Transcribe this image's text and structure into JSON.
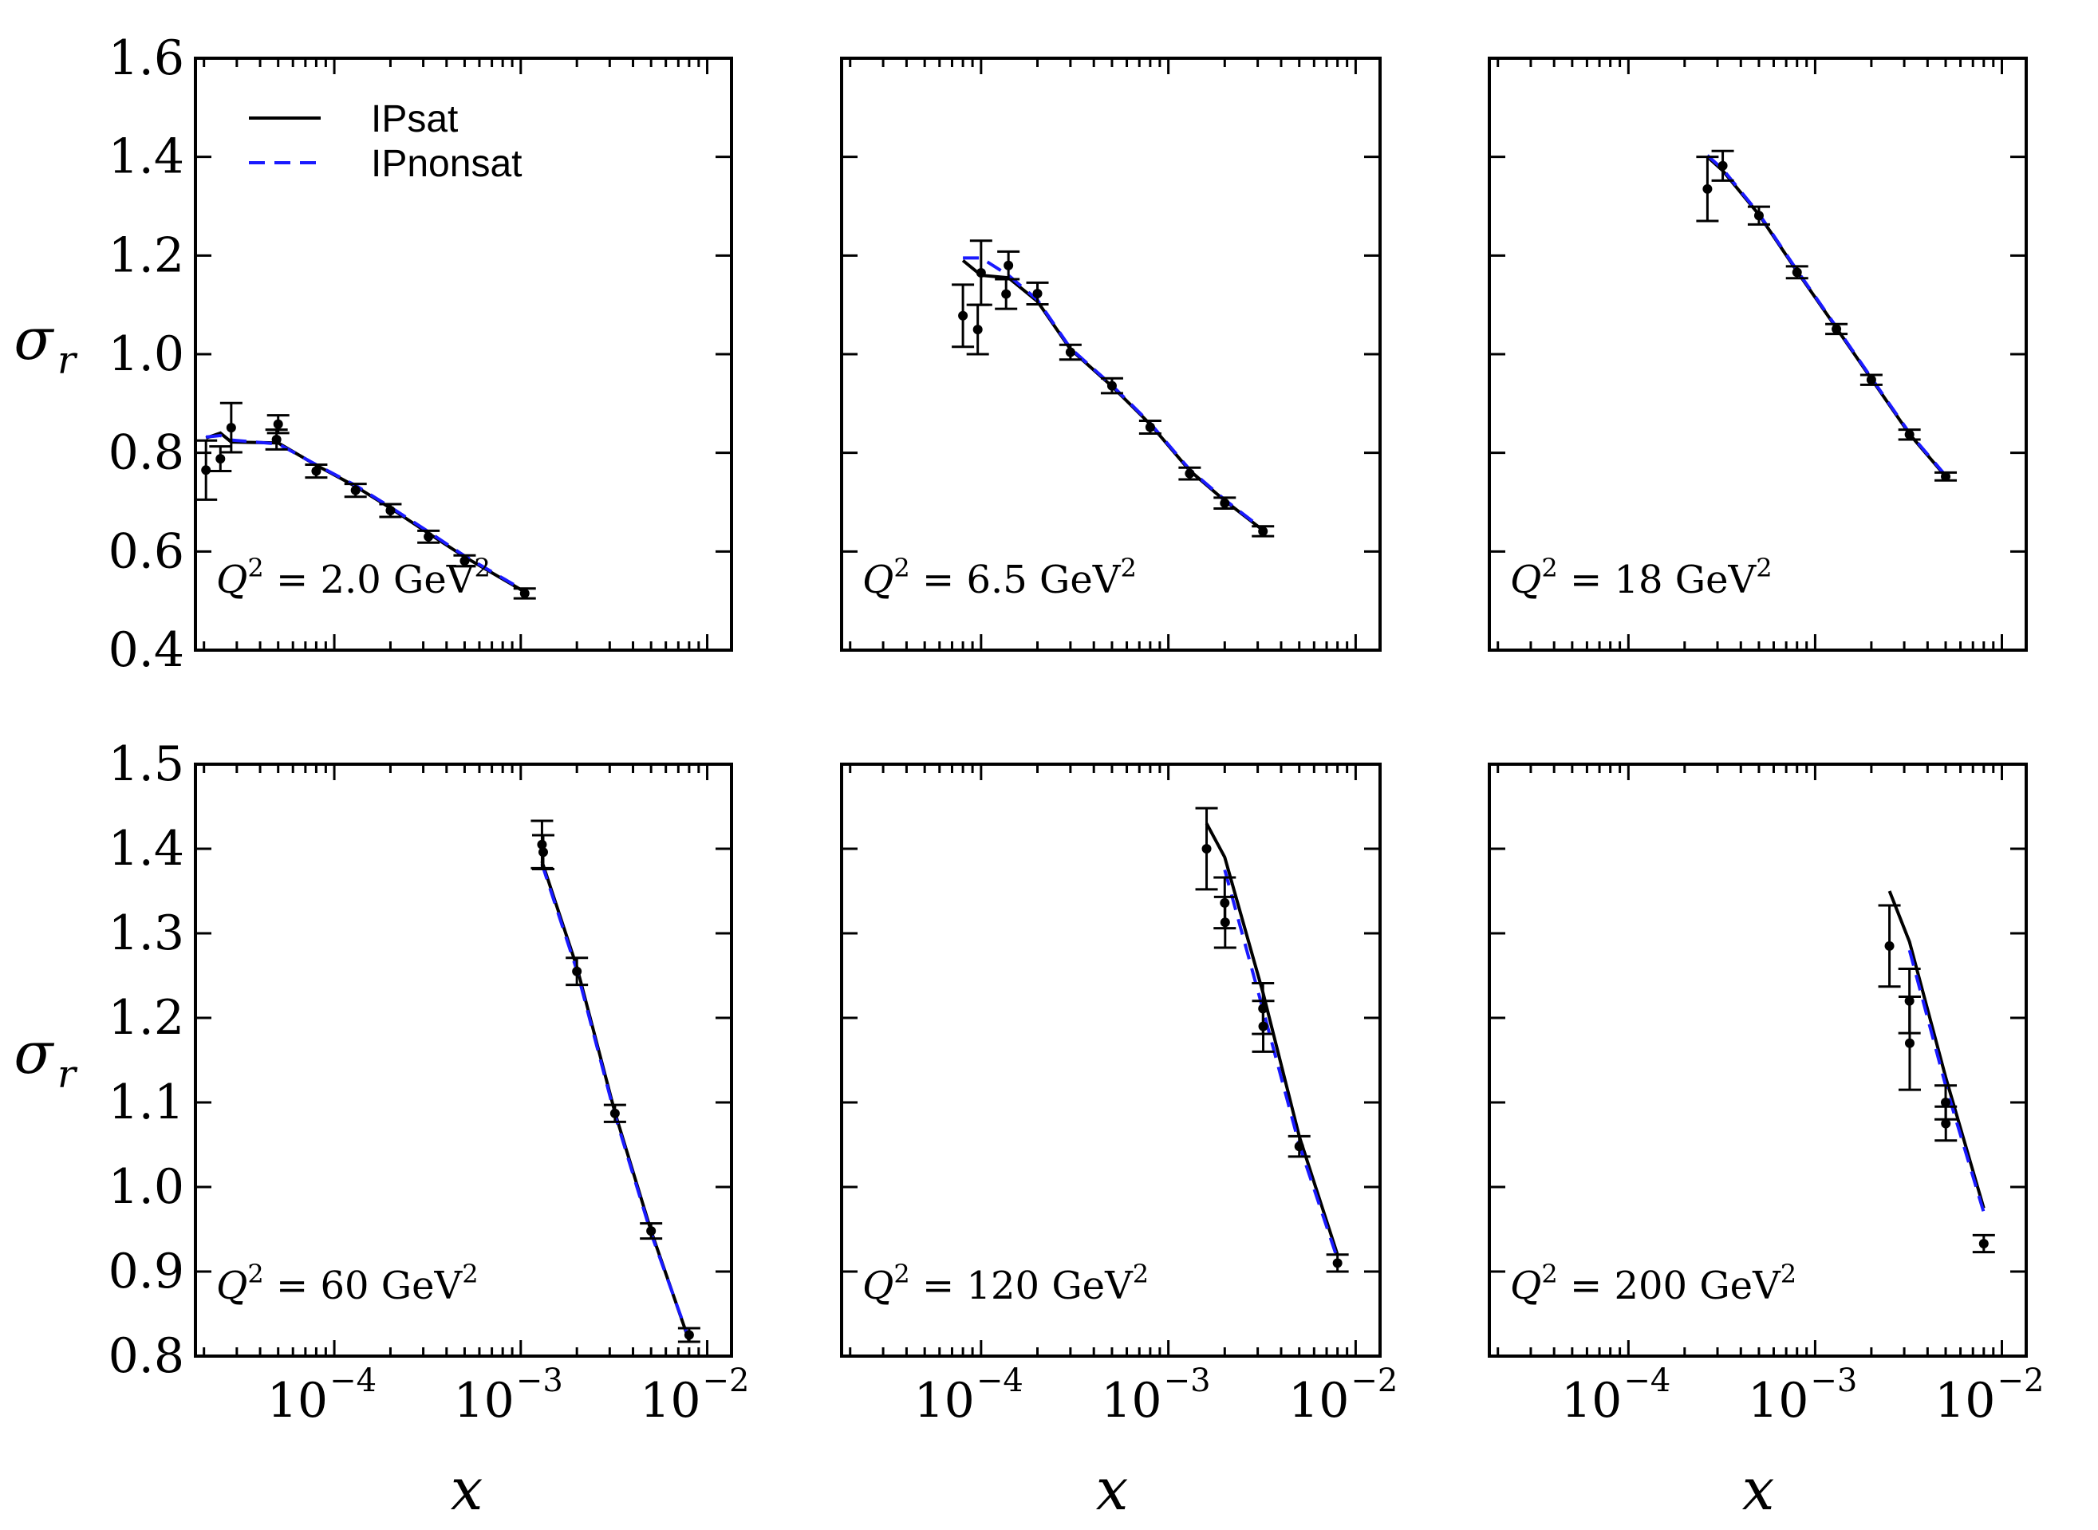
{
  "colors": {
    "ipsat": "#000000",
    "ipnonsat": "#1a1aff",
    "points": "#000000"
  },
  "legend": {
    "ipsat": "IPsat",
    "ipnonsat": "IPnonsat"
  },
  "axes": {
    "ylabel": "σ",
    "ylabel_sub": "r",
    "xlabel": "x"
  },
  "x_tick_labels": [
    {
      "base": "10",
      "exp": "−4"
    },
    {
      "base": "10",
      "exp": "−3"
    },
    {
      "base": "10",
      "exp": "−2"
    }
  ],
  "y_tick_labels_top": [
    "0.4",
    "0.6",
    "0.8",
    "1.0",
    "1.2",
    "1.4",
    "1.6"
  ],
  "y_tick_labels_bottom": [
    "0.8",
    "0.9",
    "1.0",
    "1.1",
    "1.2",
    "1.3",
    "1.4",
    "1.5"
  ],
  "chart_data": [
    {
      "type": "line",
      "title": "",
      "annotation": {
        "var": "Q",
        "sup": "2",
        "eq": " = 2.0 GeV",
        "unit_sup": "2"
      },
      "xscale": "log",
      "xlim": [
        1.8e-05,
        0.0135
      ],
      "ylim": [
        0.4,
        1.6
      ],
      "points": [
        {
          "x": 2.05e-05,
          "y": 0.765,
          "err": 0.06
        },
        {
          "x": 2.45e-05,
          "y": 0.788,
          "err": 0.025
        },
        {
          "x": 2.8e-05,
          "y": 0.851,
          "err": 0.05
        },
        {
          "x": 4.9e-05,
          "y": 0.827,
          "err": 0.02
        },
        {
          "x": 5e-05,
          "y": 0.858,
          "err": 0.018
        },
        {
          "x": 8e-05,
          "y": 0.763,
          "err": 0.013
        },
        {
          "x": 0.00013,
          "y": 0.724,
          "err": 0.013
        },
        {
          "x": 0.0002,
          "y": 0.683,
          "err": 0.013
        },
        {
          "x": 0.00032,
          "y": 0.63,
          "err": 0.012
        },
        {
          "x": 0.0005,
          "y": 0.581,
          "err": 0.011
        },
        {
          "x": 0.00105,
          "y": 0.515,
          "err": 0.01
        }
      ],
      "series": [
        {
          "name": "IPsat",
          "x": [
            2.05e-05,
            2.45e-05,
            2.8e-05,
            5e-05,
            8e-05,
            0.00013,
            0.0002,
            0.00032,
            0.0005,
            0.00105
          ],
          "y": [
            0.83,
            0.84,
            0.822,
            0.82,
            0.775,
            0.732,
            0.688,
            0.637,
            0.589,
            0.518
          ]
        },
        {
          "name": "IPnonsat",
          "x": [
            2.05e-05,
            2.45e-05,
            2.8e-05,
            5e-05,
            8e-05,
            0.00013,
            0.0002,
            0.00032,
            0.0005,
            0.00105
          ],
          "y": [
            0.832,
            0.835,
            0.826,
            0.818,
            0.776,
            0.734,
            0.69,
            0.64,
            0.591,
            0.52
          ]
        }
      ]
    },
    {
      "type": "line",
      "title": "",
      "annotation": {
        "var": "Q",
        "sup": "2",
        "eq": " = 6.5 GeV",
        "unit_sup": "2"
      },
      "xscale": "log",
      "xlim": [
        1.8e-05,
        0.0135
      ],
      "ylim": [
        0.4,
        1.6
      ],
      "points": [
        {
          "x": 8e-05,
          "y": 1.078,
          "err": 0.063
        },
        {
          "x": 9.6e-05,
          "y": 1.05,
          "err": 0.05
        },
        {
          "x": 0.0001,
          "y": 1.165,
          "err": 0.065
        },
        {
          "x": 0.000136,
          "y": 1.122,
          "err": 0.03
        },
        {
          "x": 0.00014,
          "y": 1.18,
          "err": 0.028
        },
        {
          "x": 0.0002,
          "y": 1.123,
          "err": 0.022
        },
        {
          "x": 0.0003,
          "y": 1.004,
          "err": 0.015
        },
        {
          "x": 0.0005,
          "y": 0.936,
          "err": 0.015
        },
        {
          "x": 0.0008,
          "y": 0.852,
          "err": 0.013
        },
        {
          "x": 0.0013,
          "y": 0.758,
          "err": 0.012
        },
        {
          "x": 0.002,
          "y": 0.698,
          "err": 0.011
        },
        {
          "x": 0.0032,
          "y": 0.641,
          "err": 0.01
        }
      ],
      "series": [
        {
          "name": "IPsat",
          "x": [
            8e-05,
            0.0001,
            0.00014,
            0.0002,
            0.0003,
            0.0005,
            0.0008,
            0.0013,
            0.002,
            0.0032
          ],
          "y": [
            1.19,
            1.16,
            1.155,
            1.107,
            1.01,
            0.935,
            0.858,
            0.764,
            0.703,
            0.643
          ]
        },
        {
          "name": "IPnonsat",
          "x": [
            8e-05,
            0.0001,
            0.00014,
            0.0002,
            0.0003,
            0.0005,
            0.0008,
            0.0013,
            0.002,
            0.0032
          ],
          "y": [
            1.195,
            1.195,
            1.16,
            1.11,
            1.012,
            0.937,
            0.86,
            0.766,
            0.705,
            0.645
          ]
        }
      ]
    },
    {
      "type": "line",
      "title": "",
      "annotation": {
        "var": "Q",
        "sup": "2",
        "eq": " = 18 GeV",
        "unit_sup": "2"
      },
      "xscale": "log",
      "xlim": [
        1.8e-05,
        0.0135
      ],
      "ylim": [
        0.4,
        1.6
      ],
      "points": [
        {
          "x": 0.000265,
          "y": 1.335,
          "err": 0.065
        },
        {
          "x": 0.00032,
          "y": 1.382,
          "err": 0.03
        },
        {
          "x": 0.0005,
          "y": 1.281,
          "err": 0.018
        },
        {
          "x": 0.0008,
          "y": 1.166,
          "err": 0.012
        },
        {
          "x": 0.0013,
          "y": 1.051,
          "err": 0.01
        },
        {
          "x": 0.002,
          "y": 0.948,
          "err": 0.01
        },
        {
          "x": 0.0032,
          "y": 0.837,
          "err": 0.01
        },
        {
          "x": 0.005,
          "y": 0.752,
          "err": 0.008
        }
      ],
      "series": [
        {
          "name": "IPsat",
          "x": [
            0.000265,
            0.00032,
            0.0005,
            0.0008,
            0.0013,
            0.002,
            0.0032,
            0.005
          ],
          "y": [
            1.4,
            1.372,
            1.283,
            1.168,
            1.053,
            0.95,
            0.838,
            0.752
          ]
        },
        {
          "name": "IPnonsat",
          "x": [
            0.000265,
            0.00032,
            0.0005,
            0.0008,
            0.0013,
            0.002,
            0.0032,
            0.005
          ],
          "y": [
            1.403,
            1.375,
            1.285,
            1.17,
            1.055,
            0.952,
            0.84,
            0.754
          ]
        }
      ]
    },
    {
      "type": "line",
      "title": "",
      "annotation": {
        "var": "Q",
        "sup": "2",
        "eq": " = 60 GeV",
        "unit_sup": "2"
      },
      "xscale": "log",
      "xlim": [
        1.8e-05,
        0.0135
      ],
      "ylim": [
        0.8,
        1.5
      ],
      "points": [
        {
          "x": 0.0013,
          "y": 1.405,
          "err": 0.028
        },
        {
          "x": 0.00132,
          "y": 1.396,
          "err": 0.02
        },
        {
          "x": 0.002,
          "y": 1.255,
          "err": 0.016
        },
        {
          "x": 0.0032,
          "y": 1.087,
          "err": 0.01
        },
        {
          "x": 0.005,
          "y": 0.948,
          "err": 0.009
        },
        {
          "x": 0.008,
          "y": 0.825,
          "err": 0.008
        }
      ],
      "series": [
        {
          "name": "IPsat",
          "x": [
            0.0013,
            0.002,
            0.0032,
            0.005,
            0.008
          ],
          "y": [
            1.385,
            1.26,
            1.088,
            0.948,
            0.818
          ]
        },
        {
          "name": "IPnonsat",
          "x": [
            0.0013,
            0.002,
            0.0032,
            0.005,
            0.008
          ],
          "y": [
            1.382,
            1.256,
            1.085,
            0.945,
            0.82
          ]
        }
      ]
    },
    {
      "type": "line",
      "title": "",
      "annotation": {
        "var": "Q",
        "sup": "2",
        "eq": " = 120 GeV",
        "unit_sup": "2"
      },
      "xscale": "log",
      "xlim": [
        1.8e-05,
        0.0135
      ],
      "ylim": [
        0.8,
        1.5
      ],
      "points": [
        {
          "x": 0.0016,
          "y": 1.4,
          "err": 0.048
        },
        {
          "x": 0.002,
          "y": 1.336,
          "err": 0.03
        },
        {
          "x": 0.00201,
          "y": 1.313,
          "err": 0.03
        },
        {
          "x": 0.0032,
          "y": 1.211,
          "err": 0.03
        },
        {
          "x": 0.00321,
          "y": 1.19,
          "err": 0.03
        },
        {
          "x": 0.005,
          "y": 1.048,
          "err": 0.012
        },
        {
          "x": 0.008,
          "y": 0.91,
          "err": 0.01
        }
      ],
      "series": [
        {
          "name": "IPsat",
          "x": [
            0.0016,
            0.002,
            0.0032,
            0.005,
            0.008
          ],
          "y": [
            1.43,
            1.39,
            1.23,
            1.06,
            0.92
          ]
        },
        {
          "name": "IPnonsat",
          "x": [
            0.002,
            0.0032,
            0.005,
            0.008
          ],
          "y": [
            1.375,
            1.21,
            1.05,
            0.915
          ]
        }
      ]
    },
    {
      "type": "line",
      "title": "",
      "annotation": {
        "var": "Q",
        "sup": "2",
        "eq": " = 200 GeV",
        "unit_sup": "2"
      },
      "xscale": "log",
      "xlim": [
        1.8e-05,
        0.0135
      ],
      "ylim": [
        0.8,
        1.5
      ],
      "points": [
        {
          "x": 0.0025,
          "y": 1.285,
          "err": 0.048
        },
        {
          "x": 0.0032,
          "y": 1.22,
          "err": 0.038
        },
        {
          "x": 0.00321,
          "y": 1.17,
          "err": 0.055
        },
        {
          "x": 0.005,
          "y": 1.1,
          "err": 0.02
        },
        {
          "x": 0.00501,
          "y": 1.075,
          "err": 0.02
        },
        {
          "x": 0.008,
          "y": 0.933,
          "err": 0.01
        }
      ],
      "series": [
        {
          "name": "IPsat",
          "x": [
            0.0025,
            0.0032,
            0.005,
            0.008
          ],
          "y": [
            1.35,
            1.29,
            1.13,
            0.975
          ]
        },
        {
          "name": "IPnonsat",
          "x": [
            0.0032,
            0.005,
            0.008
          ],
          "y": [
            1.28,
            1.12,
            0.97
          ]
        }
      ]
    }
  ]
}
